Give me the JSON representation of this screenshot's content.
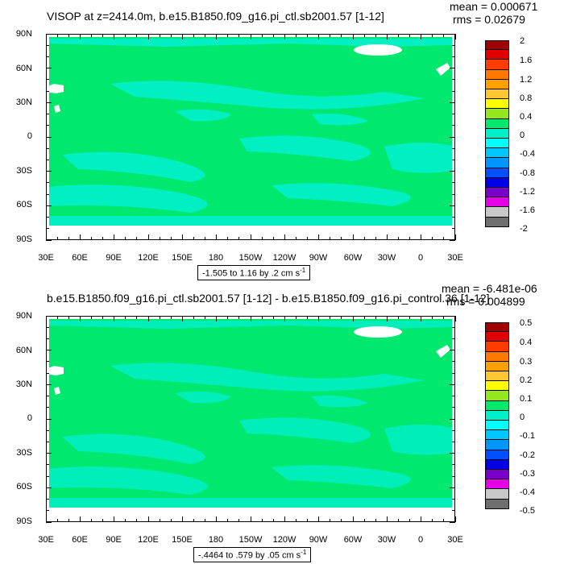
{
  "colors": {
    "ocean": "#00e86e",
    "anomaly": "#00f0c8",
    "land": "#ffffff",
    "palette": [
      "#a00000",
      "#e00000",
      "#ff3c00",
      "#ff7800",
      "#ffa000",
      "#ffc832",
      "#ffff00",
      "#96e61e",
      "#00e86e",
      "#00f0c8",
      "#00ffff",
      "#00c8ff",
      "#0096ff",
      "#0050ff",
      "#0000e6",
      "#7800c8",
      "#e600e6",
      "#c8c8c8",
      "#6e6e6e"
    ]
  },
  "axes": {
    "lat_labels": [
      "90N",
      "60N",
      "30N",
      "0",
      "30S",
      "60S",
      "90S"
    ],
    "lon_labels": [
      "30E",
      "60E",
      "90E",
      "120E",
      "150E",
      "180",
      "150W",
      "120W",
      "90W",
      "60W",
      "30W",
      "0",
      "30E"
    ]
  },
  "panels": [
    {
      "title": "VISOP at z=2414.0m, b.e15.B1850.f09_g16.pi_ctl.sb2001.57 [1-12]",
      "mean": "mean = 0.000671",
      "rms": "rms = 0.02679",
      "units": "-1.505 to 1.16 by .2 cm s",
      "units_sup": "-1",
      "colorbar_labels": [
        "2",
        "1.6",
        "1.2",
        "0.8",
        "0.4",
        "0",
        "-0.4",
        "-0.8",
        "-1.2",
        "-1.6",
        "-2"
      ]
    },
    {
      "title": "b.e15.B1850.f09_g16.pi_ctl.sb2001.57 [1-12] - b.e15.B1850.f09_g16.pi_control.36 [1-12]",
      "mean": "mean = -6.481e-06",
      "rms": "rms = 0.004899",
      "units": "-.4464 to .579 by .05 cm s",
      "units_sup": "-1",
      "colorbar_labels": [
        "0.5",
        "0.4",
        "0.3",
        "0.2",
        "0.1",
        "0",
        "-0.1",
        "-0.2",
        "-0.3",
        "-0.4",
        "-0.5"
      ]
    }
  ]
}
